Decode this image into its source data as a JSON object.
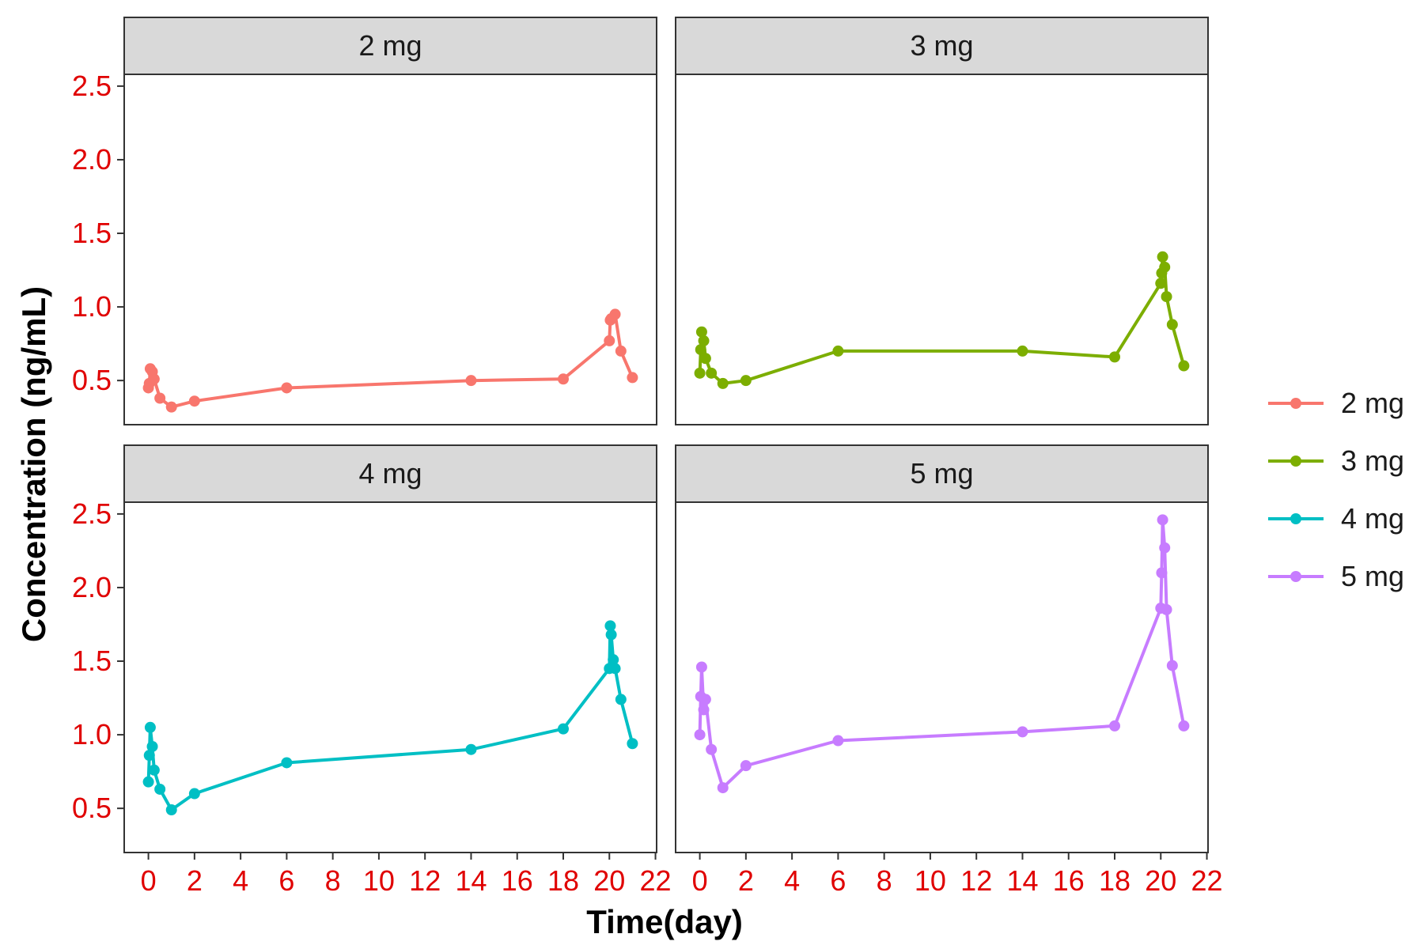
{
  "chart_data": {
    "type": "line",
    "layout": "facet_wrap 2x2",
    "xlabel": "Time(day)",
    "ylabel": "Concentration (ng/mL)",
    "xlim": [
      -1.05,
      22.05
    ],
    "ylim": [
      0.2,
      2.58
    ],
    "x_ticks": [
      0,
      2,
      4,
      6,
      8,
      10,
      12,
      14,
      16,
      18,
      20,
      22
    ],
    "y_ticks": [
      0.5,
      1.0,
      1.5,
      2.0,
      2.5
    ],
    "y_tick_labels": [
      "0.5",
      "1.0",
      "1.5",
      "2.0",
      "2.5"
    ],
    "grid": false,
    "legend_position": "right",
    "tick_label_color": "#e00000",
    "series": [
      {
        "name": "2 mg",
        "color": "#F8766D",
        "x": [
          0,
          0.04,
          0.08,
          0.17,
          0.25,
          0.5,
          1,
          2,
          6,
          14,
          18,
          20,
          20.04,
          20.08,
          20.25,
          20.5,
          21
        ],
        "y": [
          0.45,
          0.48,
          0.58,
          0.56,
          0.51,
          0.38,
          0.32,
          0.36,
          0.45,
          0.5,
          0.51,
          0.77,
          0.91,
          0.92,
          0.95,
          0.7,
          0.52
        ]
      },
      {
        "name": "3 mg",
        "color": "#7CAE00",
        "x": [
          0,
          0.04,
          0.08,
          0.17,
          0.25,
          0.5,
          1,
          2,
          6,
          14,
          18,
          20,
          20.04,
          20.08,
          20.17,
          20.25,
          20.5,
          21
        ],
        "y": [
          0.55,
          0.71,
          0.83,
          0.77,
          0.65,
          0.55,
          0.48,
          0.5,
          0.7,
          0.7,
          0.66,
          1.16,
          1.23,
          1.34,
          1.27,
          1.07,
          0.88,
          0.6
        ]
      },
      {
        "name": "4 mg",
        "color": "#00BFC4",
        "x": [
          0,
          0.04,
          0.08,
          0.17,
          0.25,
          0.5,
          1,
          2,
          6,
          14,
          18,
          20,
          20.04,
          20.08,
          20.17,
          20.25,
          20.5,
          21
        ],
        "y": [
          0.68,
          0.86,
          1.05,
          0.92,
          0.76,
          0.63,
          0.49,
          0.6,
          0.81,
          0.9,
          1.04,
          1.45,
          1.74,
          1.68,
          1.51,
          1.45,
          1.24,
          0.94
        ]
      },
      {
        "name": "5 mg",
        "color": "#C77CFF",
        "x": [
          0,
          0.04,
          0.08,
          0.17,
          0.25,
          0.5,
          1,
          2,
          6,
          14,
          18,
          20,
          20.04,
          20.08,
          20.17,
          20.25,
          20.5,
          21
        ],
        "y": [
          1.0,
          1.26,
          1.46,
          1.17,
          1.24,
          0.9,
          0.64,
          0.79,
          0.96,
          1.02,
          1.06,
          1.86,
          2.1,
          2.46,
          2.27,
          1.85,
          1.47,
          1.06
        ]
      }
    ]
  }
}
